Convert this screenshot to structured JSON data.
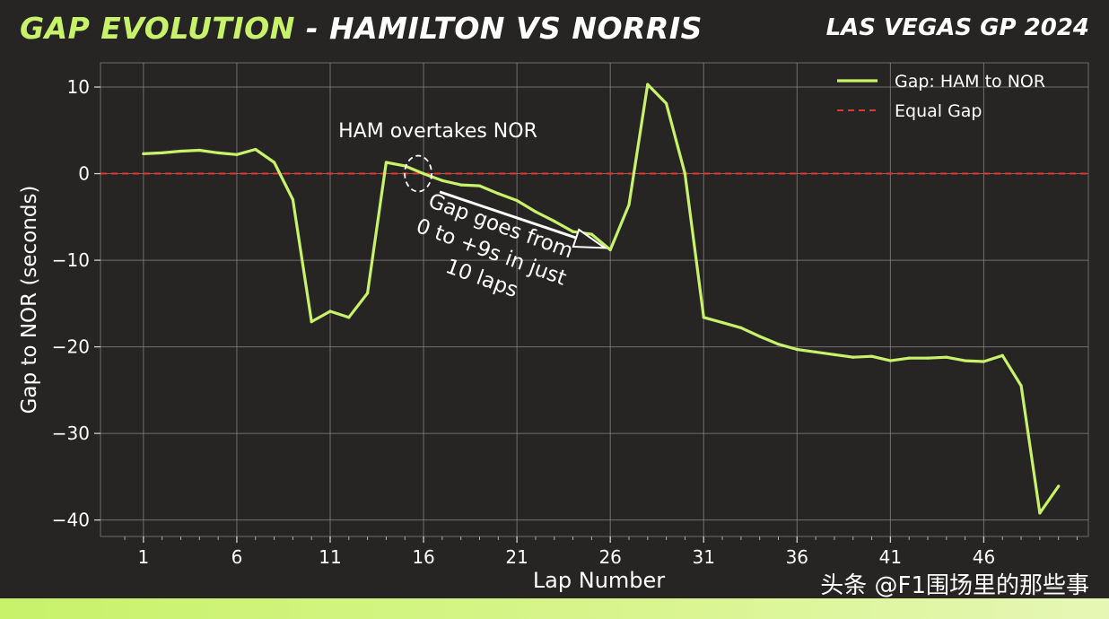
{
  "header": {
    "title_accent": "GAP EVOLUTION",
    "title_rest": " - HAMILTON VS NORRIS",
    "event": "LAS VEGAS GP 2024"
  },
  "watermark": "头条 @F1围场里的那些事",
  "colors": {
    "background": "#272524",
    "accent": "#c8f26a",
    "series_line": "#c8f26a",
    "equal_line": "#e0372e",
    "text": "#ffffff",
    "grid": "#8a8886"
  },
  "chart_data": {
    "type": "line",
    "title": "",
    "xlabel": "Lap Number",
    "ylabel": "Gap to NOR (seconds)",
    "xlim": [
      -1.3,
      51.6
    ],
    "ylim": [
      -41.9,
      12.8
    ],
    "xticks": [
      1,
      6,
      11,
      16,
      21,
      26,
      31,
      36,
      41,
      46
    ],
    "yticks": [
      10,
      0,
      -10,
      -20,
      -30,
      -40
    ],
    "ytick_labels": [
      "10",
      "0",
      "−10",
      "−20",
      "−30",
      "−40"
    ],
    "grid": true,
    "legend_position": "top-right",
    "series": [
      {
        "name": "Gap: HAM to NOR",
        "style": "solid",
        "x": [
          1,
          2,
          3,
          4,
          5,
          6,
          7,
          8,
          9,
          10,
          11,
          12,
          13,
          14,
          15,
          16,
          17,
          18,
          19,
          20,
          21,
          22,
          23,
          24,
          25,
          26,
          27,
          28,
          29,
          30,
          31,
          32,
          33,
          34,
          35,
          36,
          37,
          38,
          39,
          40,
          41,
          42,
          43,
          44,
          45,
          46,
          47,
          48,
          49,
          50
        ],
        "values": [
          2.3,
          2.4,
          2.6,
          2.7,
          2.4,
          2.2,
          2.8,
          1.3,
          -3.0,
          -17.1,
          -15.9,
          -16.6,
          -13.8,
          1.3,
          0.9,
          0.0,
          -0.8,
          -1.3,
          -1.4,
          -2.3,
          -3.1,
          -4.4,
          -5.5,
          -6.7,
          -7.0,
          -8.8,
          -3.6,
          10.3,
          8.1,
          0.0,
          -16.6,
          -17.2,
          -17.8,
          -18.8,
          -19.7,
          -20.3,
          -20.6,
          -20.9,
          -21.2,
          -21.1,
          -21.6,
          -21.3,
          -21.3,
          -21.2,
          -21.6,
          -21.7,
          -21.0,
          -24.5,
          -39.2,
          -36.1
        ]
      },
      {
        "name": "Equal Gap",
        "style": "dashed",
        "y": 0
      }
    ],
    "annotations": [
      {
        "text": "HAM overtakes NOR",
        "x": 16,
        "y": 0
      },
      {
        "text": "Gap goes from 0 to +9s in just 10 laps",
        "lines": [
          "Gap goes from",
          "0 to +9s in just",
          "10 laps"
        ],
        "from_x": 16,
        "from_y": -2,
        "to_x": 26,
        "to_y": -9
      }
    ]
  }
}
